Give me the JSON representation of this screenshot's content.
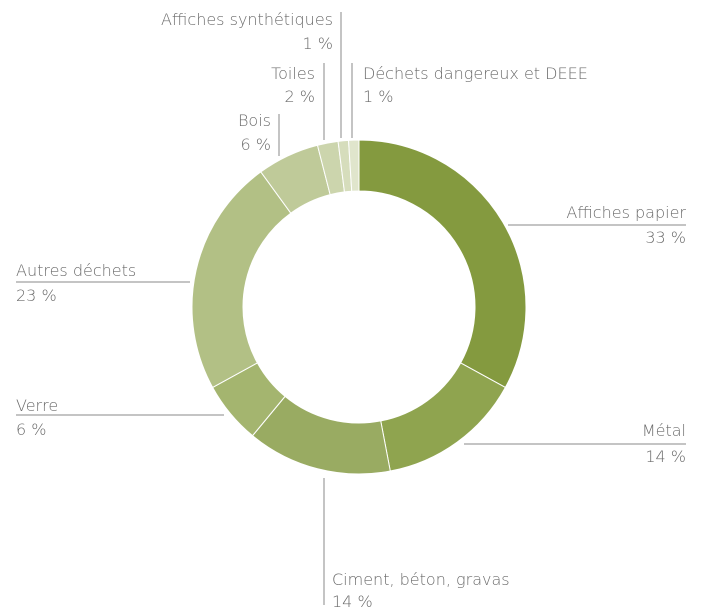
{
  "chart_data": {
    "type": "pie",
    "style": "donut",
    "categories": [
      "Affiches papier",
      "Métal",
      "Ciment, béton, gravas",
      "Verre",
      "Autres déchets",
      "Bois",
      "Toiles",
      "Affiches synthétiques",
      "Déchets dangereux et DEEE"
    ],
    "values": [
      33,
      14,
      14,
      6,
      23,
      6,
      2,
      1,
      1
    ],
    "value_labels": [
      "33 %",
      "14 %",
      "14 %",
      "6 %",
      "23 %",
      "6 %",
      "2 %",
      "1 %",
      "1 %"
    ],
    "colors": [
      "#849a3f",
      "#8fa44f",
      "#99ab62",
      "#a4b56f",
      "#b2c085",
      "#bfca99",
      "#ccd5ad",
      "#d6ddbc",
      "#e0e5cc"
    ],
    "title": "",
    "legend": "none"
  }
}
